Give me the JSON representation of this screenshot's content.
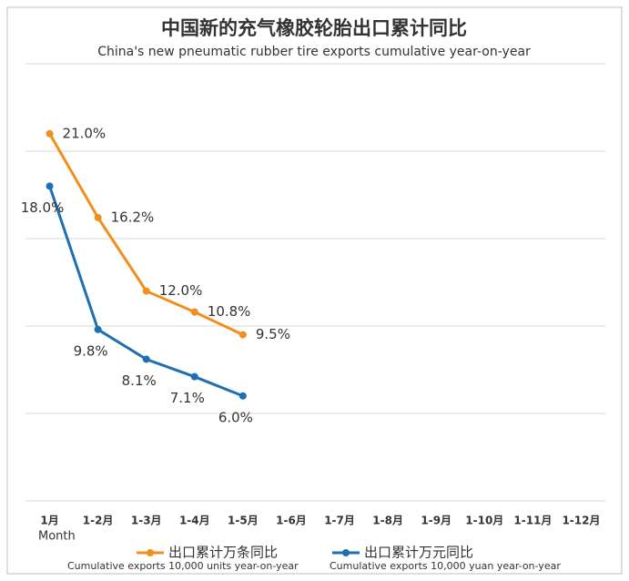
{
  "chart_data": {
    "type": "line",
    "title": "中国新的充气橡胶轮胎出口累计同比",
    "subtitle": "China's new pneumatic rubber tire exports cumulative year-on-year",
    "x_label": "Month",
    "categories": [
      "1月",
      "1-2月",
      "1-3月",
      "1-4月",
      "1-5月",
      "1-6月",
      "1-7月",
      "1-8月",
      "1-9月",
      "1-10月",
      "1-11月",
      "1-12月"
    ],
    "series": [
      {
        "name": "出口累计万条同比",
        "description": "Cumulative exports 10,000 units year-on-year",
        "color": "#f28e1c",
        "values": [
          21.0,
          16.2,
          12.0,
          10.8,
          9.5,
          null,
          null,
          null,
          null,
          null,
          null,
          null
        ],
        "value_labels": [
          "21.0%",
          "16.2%",
          "12.0%",
          "10.8%",
          "9.5%",
          null,
          null,
          null,
          null,
          null,
          null,
          null
        ]
      },
      {
        "name": "出口累计万元同比",
        "description": "Cumulative exports 10,000 yuan year-on-year",
        "color": "#1f6fb5",
        "values": [
          18.0,
          9.8,
          8.1,
          7.1,
          6.0,
          null,
          null,
          null,
          null,
          null,
          null,
          null
        ],
        "value_labels": [
          "18.0%",
          "9.8%",
          "8.1%",
          "7.1%",
          "6.0%",
          null,
          null,
          null,
          null,
          null,
          null,
          null
        ]
      }
    ],
    "ylim": [
      0,
      25
    ],
    "yticks": [
      0,
      5,
      10,
      15,
      20,
      25
    ],
    "grid": true
  }
}
